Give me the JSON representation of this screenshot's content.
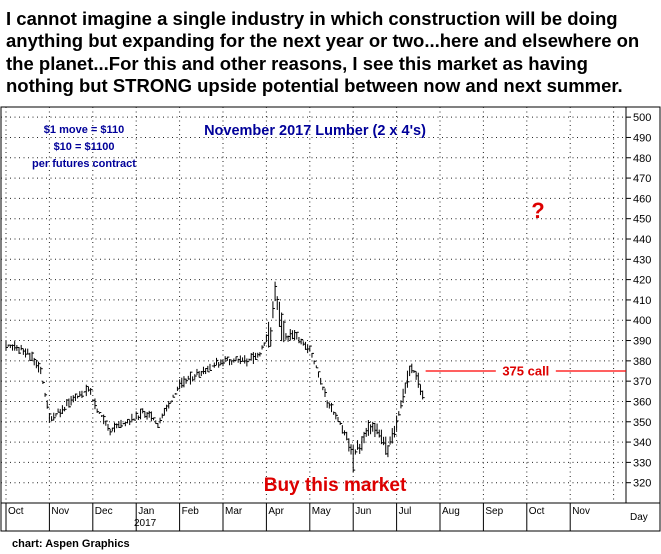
{
  "headline": "I cannot imagine a single industry in which construction will be doing anything but expanding for the next year or two...here and elsewhere on the planet...For this and other reasons, I see this market as having nothing but STRONG upside potential between now and next summer.",
  "credit": "chart: Aspen Graphics",
  "chart_data": {
    "type": "bar",
    "subtype": "ohlc",
    "title": "November 2017 Lumber (2 x 4's)",
    "info_lines": [
      "$1 move = $110",
      "$10 = $1100",
      "per futures contract"
    ],
    "question_mark": "?",
    "buy_label": "Buy this market",
    "call_label": "375 call",
    "call_level": 375,
    "ylim": [
      310,
      505
    ],
    "y_ticks": [
      320,
      330,
      340,
      350,
      360,
      370,
      380,
      390,
      400,
      410,
      420,
      430,
      440,
      450,
      460,
      470,
      480,
      490,
      500
    ],
    "x_axis_unit": "Day",
    "x_ticks": [
      "Oct",
      "Nov",
      "Dec",
      "Jan",
      "Feb",
      "Mar",
      "Apr",
      "May",
      "Jun",
      "Jul",
      "Aug",
      "Sep",
      "Oct",
      "Nov"
    ],
    "year_label": "2017",
    "grid": true,
    "colors": {
      "title": "#000099",
      "info": "#000099",
      "alert": "#dd0000",
      "bars": "#000000",
      "call_line": "#ff0000"
    },
    "price_path": [
      {
        "m": 0.0,
        "p": 388
      },
      {
        "m": 0.3,
        "p": 386
      },
      {
        "m": 0.6,
        "p": 382
      },
      {
        "m": 0.8,
        "p": 375
      },
      {
        "m": 1.0,
        "p": 352
      },
      {
        "m": 1.3,
        "p": 356
      },
      {
        "m": 1.6,
        "p": 362
      },
      {
        "m": 1.9,
        "p": 366
      },
      {
        "m": 2.1,
        "p": 356
      },
      {
        "m": 2.4,
        "p": 346
      },
      {
        "m": 2.7,
        "p": 349
      },
      {
        "m": 3.0,
        "p": 352
      },
      {
        "m": 3.2,
        "p": 355
      },
      {
        "m": 3.5,
        "p": 349
      },
      {
        "m": 3.8,
        "p": 360
      },
      {
        "m": 4.0,
        "p": 368
      },
      {
        "m": 4.5,
        "p": 375
      },
      {
        "m": 5.0,
        "p": 380
      },
      {
        "m": 5.5,
        "p": 380
      },
      {
        "m": 5.8,
        "p": 382
      },
      {
        "m": 6.1,
        "p": 394
      },
      {
        "m": 6.2,
        "p": 410
      },
      {
        "m": 6.4,
        "p": 392
      },
      {
        "m": 6.7,
        "p": 393
      },
      {
        "m": 7.0,
        "p": 385
      },
      {
        "m": 7.2,
        "p": 374
      },
      {
        "m": 7.4,
        "p": 360
      },
      {
        "m": 7.7,
        "p": 350
      },
      {
        "m": 8.0,
        "p": 334
      },
      {
        "m": 8.2,
        "p": 340
      },
      {
        "m": 8.4,
        "p": 348
      },
      {
        "m": 8.6,
        "p": 345
      },
      {
        "m": 8.8,
        "p": 336
      },
      {
        "m": 9.0,
        "p": 350
      },
      {
        "m": 9.2,
        "p": 368
      },
      {
        "m": 9.35,
        "p": 377
      },
      {
        "m": 9.5,
        "p": 371
      },
      {
        "m": 9.6,
        "p": 363
      }
    ]
  }
}
